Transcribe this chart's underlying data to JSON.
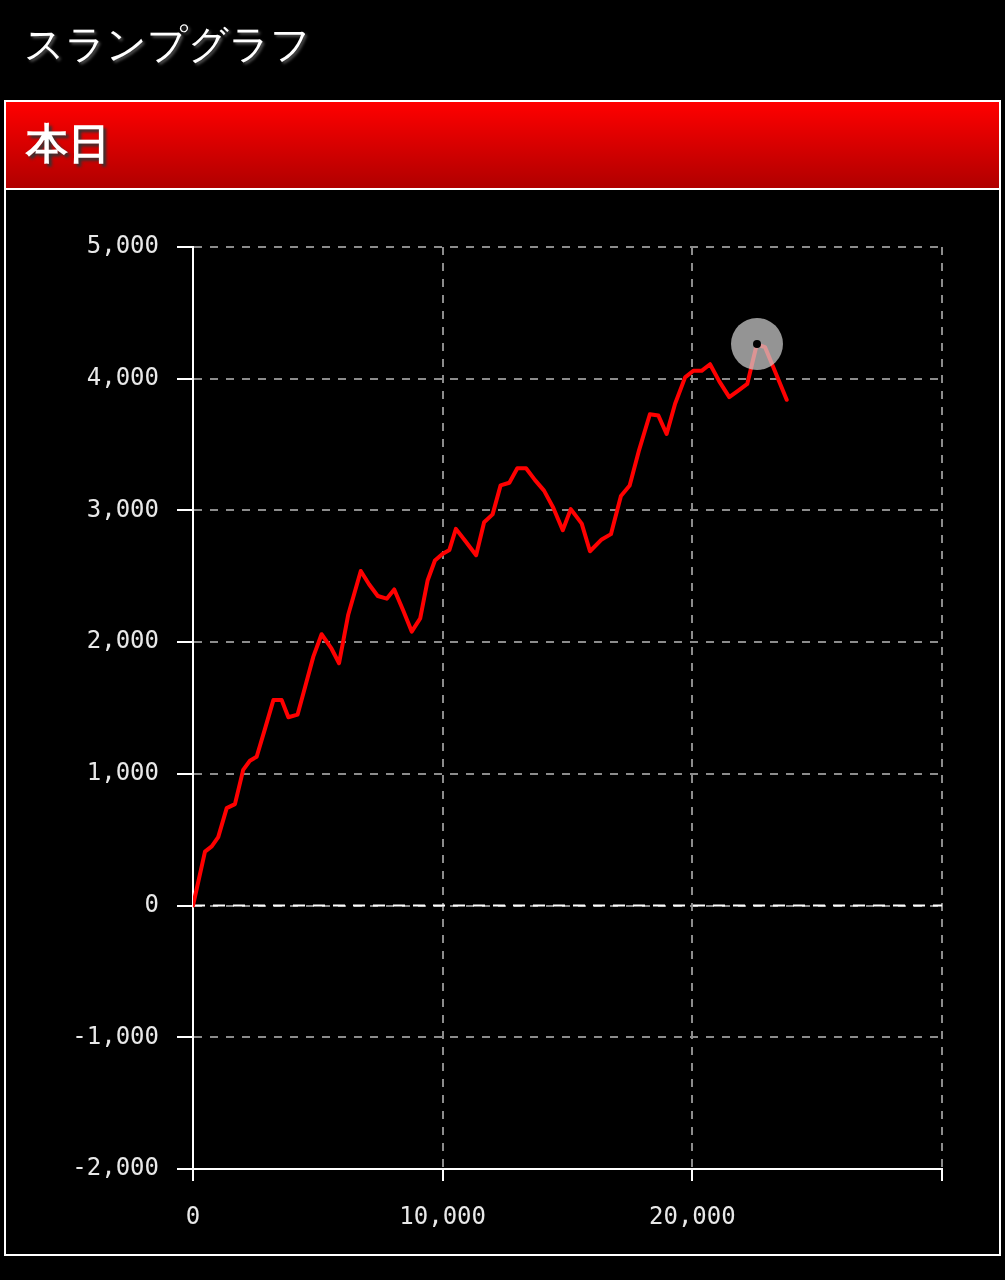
{
  "chart_data": {
    "type": "line",
    "title": "スランプグラフ",
    "subtitle": "本日",
    "x": [
      0,
      480,
      750,
      1010,
      1350,
      1680,
      2010,
      2280,
      2550,
      2880,
      3220,
      3550,
      3820,
      4190,
      4490,
      4820,
      5150,
      5550,
      5850,
      6220,
      6720,
      7050,
      7400,
      7760,
      8060,
      8420,
      8760,
      9100,
      9400,
      9690,
      9990,
      10270,
      10530,
      10900,
      11340,
      11660,
      12000,
      12320,
      12670,
      12990,
      13340,
      13700,
      14060,
      14430,
      14810,
      15130,
      15570,
      15900,
      16370,
      16740,
      17140,
      17490,
      17870,
      18300,
      18640,
      18970,
      19310,
      19710,
      20040,
      20370,
      20710,
      21080,
      21480,
      21840,
      22200,
      22580,
      22910,
      23780
    ],
    "series": [
      {
        "color": "#ff0000",
        "values": [
          0,
          410,
          450,
          520,
          740,
          770,
          1030,
          1100,
          1130,
          1340,
          1560,
          1560,
          1430,
          1450,
          1660,
          1890,
          2060,
          1950,
          1840,
          2210,
          2540,
          2440,
          2350,
          2330,
          2400,
          2240,
          2080,
          2180,
          2470,
          2620,
          2670,
          2700,
          2860,
          2770,
          2660,
          2910,
          2970,
          3190,
          3210,
          3320,
          3320,
          3230,
          3150,
          3020,
          2850,
          3010,
          2900,
          2690,
          2780,
          2820,
          3110,
          3190,
          3460,
          3730,
          3720,
          3580,
          3810,
          4010,
          4060,
          4060,
          4110,
          3980,
          3860,
          3910,
          3960,
          4260,
          4240,
          3840
        ]
      }
    ],
    "xlim": [
      0,
      30000
    ],
    "xticks": [
      0,
      {
        "value": 10000,
        "label": "10,000"
      },
      {
        "value": 20000,
        "label": "20,000"
      },
      {
        "value": 30000,
        "label": null
      }
    ],
    "ylim": [
      -2000,
      5000
    ],
    "yticks": [
      {
        "value": -2000,
        "label": "-2,000"
      },
      {
        "value": -1000,
        "label": "-1,000"
      },
      0,
      {
        "value": 1000,
        "label": "1,000"
      },
      {
        "value": 2000,
        "label": "2,000"
      },
      {
        "value": 3000,
        "label": "3,000"
      },
      {
        "value": 4000,
        "label": "4,000"
      },
      {
        "value": 5000,
        "label": "5,000"
      }
    ],
    "grid": true,
    "marker": "none",
    "line_style": "solid",
    "ref_lines": [
      {
        "axis": "y",
        "value": 0,
        "color": "#ffffff",
        "line_style": "dashed"
      }
    ]
  }
}
